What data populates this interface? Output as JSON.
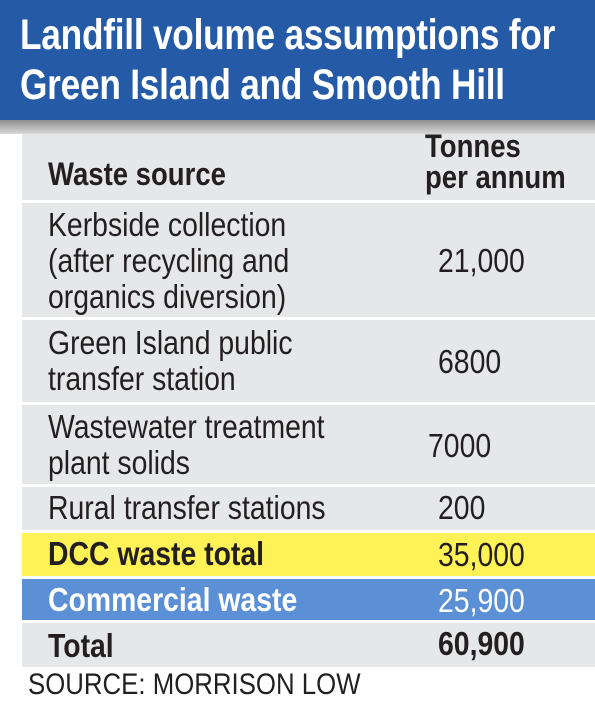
{
  "title": {
    "line1": "Landfill volume assumptions for",
    "line2": "Green Island and Smooth Hill"
  },
  "colors": {
    "title_bg": "#245aa6",
    "row_bg": "#e6e7e8",
    "dcc_highlight": "#fff257",
    "commercial_highlight": "#5b8fd6",
    "commercial_text": "#ffffff"
  },
  "chart_data": {
    "type": "table",
    "columns": [
      "Waste source",
      "Tonnes per annum"
    ],
    "header": {
      "source": "Waste source",
      "tonnes_line1": "Tonnes",
      "tonnes_line2": "per annum"
    },
    "rows": [
      {
        "source_lines": [
          "Kerbside collection",
          "(after recycling and",
          "organics diversion)"
        ],
        "value": "21,000"
      },
      {
        "source_lines": [
          "Green Island public",
          "transfer station"
        ],
        "value": "6800"
      },
      {
        "source_lines": [
          "Wastewater treatment",
          "plant solids"
        ],
        "value": "7000"
      },
      {
        "source_lines": [
          "Rural transfer stations"
        ],
        "value": "200"
      },
      {
        "source_lines": [
          "DCC waste total"
        ],
        "value": "35,000"
      },
      {
        "source_lines": [
          "Commercial waste"
        ],
        "value": "25,900"
      },
      {
        "source_lines": [
          "Total"
        ],
        "value": "60,900"
      }
    ]
  },
  "source": "SOURCE: MORRISON LOW"
}
